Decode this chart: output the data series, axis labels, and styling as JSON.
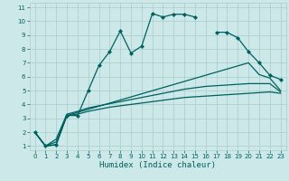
{
  "xlabel": "Humidex (Indice chaleur)",
  "bg_color": "#cce8e8",
  "grid_color": "#aacccc",
  "line_color": "#006060",
  "xlim": [
    -0.5,
    23.5
  ],
  "ylim": [
    0.7,
    11.3
  ],
  "xticks": [
    0,
    1,
    2,
    3,
    4,
    5,
    6,
    7,
    8,
    9,
    10,
    11,
    12,
    13,
    14,
    15,
    16,
    17,
    18,
    19,
    20,
    21,
    22,
    23
  ],
  "yticks": [
    1,
    2,
    3,
    4,
    5,
    6,
    7,
    8,
    9,
    10,
    11
  ],
  "main_line": {
    "x": [
      0,
      1,
      2,
      3,
      4,
      5,
      6,
      7,
      8,
      9,
      10,
      11,
      12,
      13,
      14,
      15,
      16,
      17,
      18,
      19,
      20,
      21,
      22,
      23
    ],
    "y": [
      2.0,
      1.0,
      1.1,
      3.2,
      3.2,
      5.0,
      6.8,
      7.8,
      9.3,
      7.7,
      8.2,
      10.55,
      10.3,
      10.5,
      10.5,
      10.3,
      null,
      9.2,
      9.2,
      8.8,
      7.8,
      7.0,
      6.1,
      5.8
    ]
  },
  "upper_line": {
    "x": [
      0,
      1,
      2,
      3,
      20,
      21,
      22,
      23
    ],
    "y": [
      2.0,
      1.0,
      1.1,
      3.2,
      7.0,
      6.15,
      5.9,
      5.0
    ]
  },
  "mid_line": {
    "x": [
      0,
      1,
      2,
      3,
      4,
      5,
      6,
      7,
      8,
      9,
      10,
      11,
      12,
      13,
      14,
      15,
      16,
      17,
      18,
      19,
      20,
      21,
      22,
      23
    ],
    "y": [
      2.0,
      1.0,
      1.5,
      3.3,
      3.5,
      3.75,
      3.9,
      4.05,
      4.2,
      4.35,
      4.5,
      4.65,
      4.8,
      4.95,
      5.1,
      5.2,
      5.3,
      5.35,
      5.4,
      5.45,
      5.5,
      5.5,
      5.5,
      4.9
    ]
  },
  "lower_line": {
    "x": [
      0,
      1,
      2,
      3,
      4,
      5,
      6,
      7,
      8,
      9,
      10,
      11,
      12,
      13,
      14,
      15,
      16,
      17,
      18,
      19,
      20,
      21,
      22,
      23
    ],
    "y": [
      2.0,
      1.0,
      1.3,
      3.2,
      3.3,
      3.5,
      3.65,
      3.8,
      3.9,
      4.0,
      4.1,
      4.2,
      4.3,
      4.4,
      4.5,
      4.55,
      4.6,
      4.65,
      4.7,
      4.75,
      4.8,
      4.85,
      4.9,
      4.8
    ]
  }
}
